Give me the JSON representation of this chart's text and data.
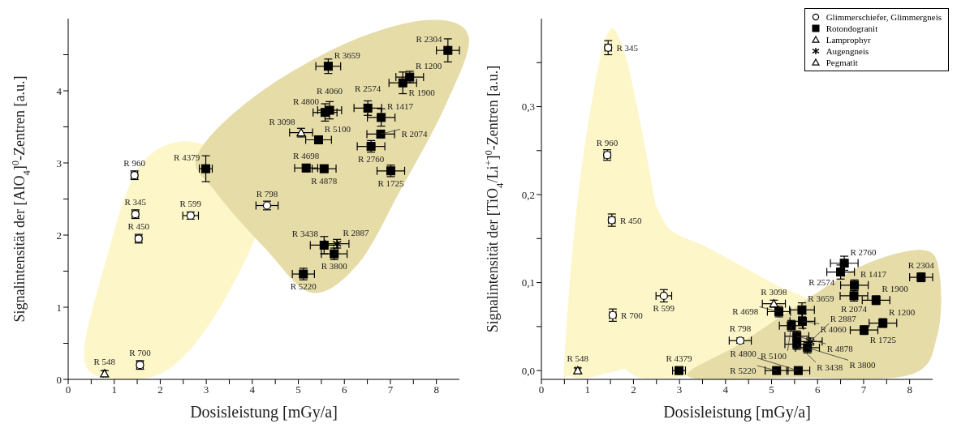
{
  "chart_data": [
    {
      "type": "scatter",
      "xlabel": "Dosisleistung [mGy/a]",
      "ylabel": "Signalintensität der [AlO$_{4}$]$^{0}$-Zentren [a.u.]",
      "xlim": [
        0,
        8.5
      ],
      "xticks": [
        0,
        {
          "value": 0.5,
          "label": null
        },
        1,
        {
          "value": 1.5,
          "label": null
        },
        2,
        {
          "value": 2.5,
          "label": null
        },
        3,
        {
          "value": 3.5,
          "label": null
        },
        4,
        {
          "value": 4.5,
          "label": null
        },
        5,
        {
          "value": 5.5,
          "label": null
        },
        6,
        {
          "value": 6.5,
          "label": null
        },
        7,
        {
          "value": 7.5,
          "label": null
        },
        8
      ],
      "ylim": [
        0,
        5
      ],
      "yticks": [
        0,
        {
          "value": 0.5,
          "label": null
        },
        1,
        {
          "value": 1.5,
          "label": null
        },
        2,
        {
          "value": 2.5,
          "label": null
        },
        3,
        {
          "value": 3.5,
          "label": null
        },
        4,
        {
          "value": 4.5,
          "label": null
        }
      ],
      "legend": false,
      "series": [
        {
          "color": "#000000",
          "marker": "circle",
          "x": [
            1.56,
            1.44,
            1.46,
            1.53,
            2.66,
            4.32
          ],
          "values": [
            0.2,
            2.83,
            2.29,
            1.95,
            2.27,
            2.41
          ],
          "xerrors": [
            0.07,
            0.07,
            0.07,
            0.07,
            0.17,
            0.24
          ],
          "errors": [
            0.06,
            0.06,
            0.06,
            0.06,
            0.05,
            0.06
          ]
        },
        {
          "color": "#000000",
          "marker": "square",
          "x": [
            2.99,
            5.11,
            5.17,
            5.44,
            5.65,
            5.58,
            5.68,
            5.56,
            5.56,
            5.78,
            6.51,
            6.8,
            6.79,
            6.58,
            7.01,
            7.27,
            7.42,
            8.25
          ],
          "values": [
            2.92,
            1.46,
            2.93,
            3.32,
            4.34,
            3.7,
            3.73,
            2.92,
            1.86,
            1.74,
            3.76,
            3.63,
            3.4,
            3.23,
            2.89,
            4.11,
            4.19,
            4.56
          ],
          "xerrors": [
            0.14,
            0.24,
            0.25,
            0.28,
            0.27,
            0.26,
            0.26,
            0.26,
            0.3,
            0.28,
            0.3,
            0.3,
            0.3,
            0.3,
            0.3,
            0.3,
            0.3,
            0.25
          ],
          "errors": [
            0.18,
            0.08,
            0.05,
            0.05,
            0.1,
            0.12,
            0.12,
            0.05,
            0.12,
            0.08,
            0.1,
            0.12,
            0.05,
            0.08,
            0.08,
            0.15,
            0.08,
            0.16
          ]
        },
        {
          "color": "#000000",
          "marker": "triangle",
          "x": [
            5.06
          ],
          "values": [
            3.42
          ],
          "xerrors": [
            0.25
          ],
          "errors": [
            0.06
          ]
        },
        {
          "color": "#000000",
          "marker": "cross",
          "x": [
            5.84
          ],
          "values": [
            1.88
          ],
          "xerrors": [
            0.26
          ],
          "errors": [
            0.06
          ]
        },
        {
          "color": "#000000",
          "marker": "triangle",
          "x": [
            0.79
          ],
          "values": [
            0.08
          ],
          "xerrors": [
            0.03
          ],
          "errors": [
            0.04
          ]
        }
      ],
      "annotations": [
        {
          "text": "R 700",
          "x": 1.56,
          "y": 0.2
        },
        {
          "text": "R 960",
          "x": 1.44,
          "y": 2.83
        },
        {
          "text": "R 345",
          "x": 1.46,
          "y": 2.29
        },
        {
          "text": "R 450",
          "x": 1.53,
          "y": 1.95
        },
        {
          "text": "R 599",
          "x": 2.66,
          "y": 2.27
        },
        {
          "text": "R 798",
          "x": 4.32,
          "y": 2.41
        },
        {
          "text": "R 4379",
          "x": 2.99,
          "y": 2.92
        },
        {
          "text": "R 5220",
          "x": 5.11,
          "y": 1.46
        },
        {
          "text": "R 4698",
          "x": 5.17,
          "y": 2.93
        },
        {
          "text": "R 5100",
          "x": 5.44,
          "y": 3.32
        },
        {
          "text": "R 3659",
          "x": 5.65,
          "y": 4.34
        },
        {
          "text": "R 4800",
          "x": 5.58,
          "y": 3.7
        },
        {
          "text": "R 4060",
          "x": 5.68,
          "y": 3.73
        },
        {
          "text": "R 4878",
          "x": 5.56,
          "y": 2.92
        },
        {
          "text": "R 3438",
          "x": 5.56,
          "y": 1.86
        },
        {
          "text": "R 3800",
          "x": 5.78,
          "y": 1.74
        },
        {
          "text": "R 2574",
          "x": 6.51,
          "y": 3.76
        },
        {
          "text": "R 1417",
          "x": 6.8,
          "y": 3.63
        },
        {
          "text": "R 2074",
          "x": 6.79,
          "y": 3.4
        },
        {
          "text": "R 2760",
          "x": 6.58,
          "y": 3.23
        },
        {
          "text": "R 1725",
          "x": 7.01,
          "y": 2.89
        },
        {
          "text": "R 1900",
          "x": 7.27,
          "y": 4.11
        },
        {
          "text": "R 1200",
          "x": 7.42,
          "y": 4.19
        },
        {
          "text": "R 2304",
          "x": 8.25,
          "y": 4.56
        },
        {
          "text": "R 3098",
          "x": 5.06,
          "y": 3.42
        },
        {
          "text": "R 2887",
          "x": 5.84,
          "y": 1.88
        },
        {
          "text": "R 548",
          "x": 0.79,
          "y": 0.08
        }
      ]
    },
    {
      "type": "scatter",
      "xlabel": "Dosisleistung [mGy/a]",
      "ylabel": "Signalintensität der [TiO$_{4}$/Li$^{+}$]$^{0}$-Zentren [a.u.]",
      "xlim": [
        0,
        8.5
      ],
      "xticks": [
        0,
        {
          "value": 0.5,
          "label": null
        },
        1,
        {
          "value": 1.5,
          "label": null
        },
        2,
        {
          "value": 2.5,
          "label": null
        },
        3,
        {
          "value": 3.5,
          "label": null
        },
        4,
        {
          "value": 4.5,
          "label": null
        },
        5,
        {
          "value": 5.5,
          "label": null
        },
        6,
        {
          "value": 6.5,
          "label": null
        },
        7,
        {
          "value": 7.5,
          "label": null
        },
        8
      ],
      "ylim": [
        -0.01,
        0.4
      ],
      "yticks": [
        {
          "value": 0,
          "label": "0,0"
        },
        {
          "value": 0.05,
          "label": null
        },
        {
          "value": 0.1,
          "label": "0,1"
        },
        {
          "value": 0.15,
          "label": null
        },
        {
          "value": 0.2,
          "label": "0,2"
        },
        {
          "value": 0.25,
          "label": null
        },
        {
          "value": 0.3,
          "label": "0,3"
        },
        {
          "value": 0.35,
          "label": null
        }
      ],
      "legend": "top right",
      "series": [
        {
          "name": "Glimmerschiefer, Glimmergneis",
          "color": "#000000",
          "marker": "circle",
          "x": [
            1.45,
            1.43,
            1.53,
            2.66,
            1.55,
            4.32
          ],
          "values": [
            0.367,
            0.245,
            0.171,
            0.085,
            0.063,
            0.034
          ],
          "xerrors": [
            0.07,
            0.07,
            0.07,
            0.17,
            0.07,
            0.24
          ],
          "errors": [
            0.008,
            0.006,
            0.007,
            0.007,
            0.007,
            0.003
          ]
        },
        {
          "name": "Rotondogranit",
          "color": "#000000",
          "marker": "square",
          "x": [
            2.99,
            5.16,
            5.66,
            5.67,
            5.43,
            5.55,
            5.55,
            5.78,
            5.11,
            5.58,
            6.58,
            6.5,
            6.8,
            6.79,
            7.27,
            7.42,
            7.01,
            8.25
          ],
          "values": [
            0,
            0.067,
            0.069,
            0.056,
            0.051,
            0.039,
            0.03,
            0.026,
            0,
            0,
            0.122,
            0.112,
            0.097,
            0.085,
            0.08,
            0.054,
            0.046,
            0.106
          ],
          "xerrors": [
            0.14,
            0.25,
            0.27,
            0.27,
            0.26,
            0.26,
            0.26,
            0.26,
            0.25,
            0.25,
            0.3,
            0.3,
            0.3,
            0.3,
            0.3,
            0.3,
            0.3,
            0.25
          ],
          "errors": [
            0.003,
            0.006,
            0.008,
            0.008,
            0.006,
            0.006,
            0.006,
            0.006,
            0.003,
            0.003,
            0.008,
            0.008,
            0.006,
            0.006,
            0.005,
            0.005,
            0.005,
            0.005
          ]
        },
        {
          "name": "Lamprophyr",
          "color": "#000000",
          "marker": "triangle",
          "x": [
            5.05
          ],
          "values": [
            0.076
          ],
          "xerrors": [
            0.25
          ],
          "errors": [
            0.004
          ]
        },
        {
          "name": "Augengneis",
          "color": "#000000",
          "marker": "cross",
          "x": [
            5.84
          ],
          "values": [
            0.033
          ],
          "xerrors": [
            0.26
          ],
          "errors": [
            0.004
          ]
        },
        {
          "name": "Pegmatit",
          "color": "#000000",
          "marker": "triangle",
          "x": [
            0.79
          ],
          "values": [
            0
          ],
          "xerrors": [
            0.05
          ],
          "errors": [
            0.003
          ]
        }
      ],
      "annotations": [
        {
          "text": "R 345",
          "x": 1.45,
          "y": 0.367
        },
        {
          "text": "R 960",
          "x": 1.43,
          "y": 0.245
        },
        {
          "text": "R 450",
          "x": 1.53,
          "y": 0.171
        },
        {
          "text": "R 599",
          "x": 2.66,
          "y": 0.085
        },
        {
          "text": "R 700",
          "x": 1.55,
          "y": 0.063
        },
        {
          "text": "R 798",
          "x": 4.32,
          "y": 0.034
        },
        {
          "text": "R 4379",
          "x": 2.99,
          "y": 0
        },
        {
          "text": "R 4698",
          "x": 5.16,
          "y": 0.067
        },
        {
          "text": "R 3659",
          "x": 5.66,
          "y": 0.069
        },
        {
          "text": "R 4060",
          "x": 5.67,
          "y": 0.056
        },
        {
          "text": "R 5100",
          "x": 5.43,
          "y": 0.051
        },
        {
          "text": "R 4878",
          "x": 5.55,
          "y": 0.039
        },
        {
          "text": "R 3438",
          "x": 5.55,
          "y": 0.03
        },
        {
          "text": "R 3800",
          "x": 5.78,
          "y": 0.026
        },
        {
          "text": "R 5220",
          "x": 5.11,
          "y": 0
        },
        {
          "text": "R 4800",
          "x": 5.58,
          "y": 0
        },
        {
          "text": "R 2760",
          "x": 6.58,
          "y": 0.122
        },
        {
          "text": "R 2574",
          "x": 6.5,
          "y": 0.112
        },
        {
          "text": "R 1417",
          "x": 6.8,
          "y": 0.097
        },
        {
          "text": "R 2074",
          "x": 6.79,
          "y": 0.085
        },
        {
          "text": "R 1900",
          "x": 7.27,
          "y": 0.08
        },
        {
          "text": "R 1200",
          "x": 7.42,
          "y": 0.054
        },
        {
          "text": "R 1725",
          "x": 7.01,
          "y": 0.046
        },
        {
          "text": "R 2304",
          "x": 8.25,
          "y": 0.106
        },
        {
          "text": "R 3098",
          "x": 5.05,
          "y": 0.076
        },
        {
          "text": "R 2887",
          "x": 5.84,
          "y": 0.033
        },
        {
          "text": "R 548",
          "x": 0.79,
          "y": 0
        }
      ]
    }
  ]
}
